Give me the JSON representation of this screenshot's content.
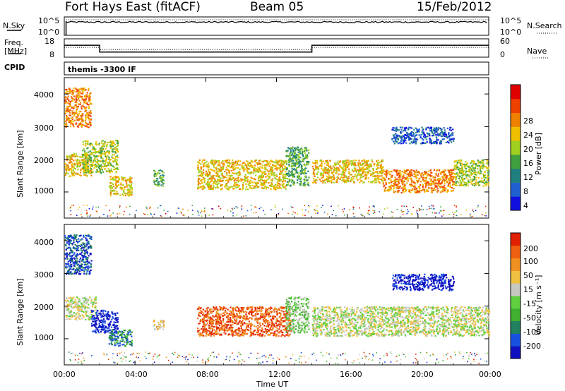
{
  "header": {
    "station": "Fort Hays East (fitACF)",
    "beam": "Beam 05",
    "date": "15/Feb/2012"
  },
  "noise_panel": {
    "left_label": "N.Sky",
    "right_label": "N.Search",
    "left_ticks": [
      "10^5",
      "10^0"
    ],
    "right_ticks": [
      "10^5",
      "10^0"
    ]
  },
  "freq_panel": {
    "left_label_1": "Freq.",
    "left_label_2": "[MHz]",
    "right_label": "Nave",
    "left_ticks": [
      "18",
      "8"
    ],
    "right_ticks": [
      "60",
      "0"
    ]
  },
  "cpid_panel": {
    "label": "CPID",
    "program": "themis -3300 IF"
  },
  "power_panel": {
    "ylabel": "Slant Range [km]",
    "yticks": [
      "4000",
      "3000",
      "2000",
      "1000"
    ],
    "colorbar_label": "Power [dB]",
    "colorbar_ticks": [
      "28",
      "24",
      "20",
      "16",
      "12",
      "8",
      "4"
    ],
    "colors": [
      "#1010e0",
      "#2060d0",
      "#208080",
      "#40a040",
      "#a0d020",
      "#f0c000",
      "#f08000",
      "#f04000",
      "#e00000"
    ]
  },
  "velocity_panel": {
    "ylabel": "Slant Range [km]",
    "yticks": [
      "4000",
      "3000",
      "2000",
      "1000"
    ],
    "colorbar_label": "Velocity [m s⁻¹]",
    "colorbar_ticks": [
      "200",
      "100",
      "50",
      "15",
      "-15",
      "-50",
      "-100",
      "-200"
    ],
    "colors": [
      "#1010c0",
      "#1850e0",
      "#208060",
      "#40b030",
      "#60d040",
      "#c8c8c0",
      "#f0c040",
      "#f09020",
      "#f06010",
      "#e02000"
    ]
  },
  "xaxis": {
    "label": "Time UT",
    "ticks": [
      "00:00",
      "04:00",
      "08:00",
      "12:00",
      "16:00",
      "20:00",
      "00:00"
    ]
  },
  "chart_data": [
    {
      "type": "line",
      "name_ref": "noise",
      "x_range_hours": [
        0,
        24
      ],
      "series": [
        {
          "name": "N.Sky",
          "x": [
            0.1,
            2,
            4,
            6,
            8,
            10,
            12,
            14,
            16,
            18,
            20,
            22,
            24
          ],
          "y_frac": [
            0.75,
            0.72,
            0.7,
            0.72,
            0.7,
            0.72,
            0.7,
            0.72,
            0.7,
            0.7,
            0.72,
            0.72,
            0.75
          ]
        },
        {
          "name": "N.Search",
          "x": [
            0.1,
            24
          ],
          "y_frac": [
            0.85,
            0.85
          ]
        }
      ]
    },
    {
      "type": "line",
      "name_ref": "frequency",
      "ylim": [
        8,
        18
      ],
      "series": [
        {
          "name": "Freq.",
          "x": [
            0,
            2,
            2,
            14,
            14,
            24
          ],
          "y": [
            14.5,
            14.5,
            10.8,
            10.8,
            14.5,
            14.5
          ]
        },
        {
          "name": "Nave",
          "x": [
            0,
            2,
            2,
            14,
            14,
            24
          ],
          "y2": [
            32,
            32,
            25,
            25,
            32,
            32
          ]
        }
      ],
      "y2lim": [
        0,
        60
      ]
    },
    {
      "type": "heatmap",
      "name_ref": "power",
      "x_range_hours": [
        0,
        24
      ],
      "ylim": [
        200,
        4500
      ],
      "colorbar": "Power [dB]",
      "clim": [
        0,
        32
      ],
      "regions": [
        {
          "t0": 0.0,
          "t1": 1.5,
          "r0": 3000,
          "r1": 4200,
          "level": 6
        },
        {
          "t0": 0.0,
          "t1": 1.5,
          "r0": 1500,
          "r1": 2200,
          "level": 5
        },
        {
          "t0": 1.0,
          "t1": 3.0,
          "r0": 1600,
          "r1": 2600,
          "level": 4
        },
        {
          "t0": 2.5,
          "t1": 3.8,
          "r0": 900,
          "r1": 1500,
          "level": 5
        },
        {
          "t0": 5.0,
          "t1": 5.6,
          "r0": 1200,
          "r1": 1700,
          "level": 3
        },
        {
          "t0": 7.5,
          "t1": 12.5,
          "r0": 1100,
          "r1": 2000,
          "level": 5
        },
        {
          "t0": 12.5,
          "t1": 13.8,
          "r0": 1200,
          "r1": 2400,
          "level": 3
        },
        {
          "t0": 14.0,
          "t1": 18.0,
          "r0": 1300,
          "r1": 2000,
          "level": 5
        },
        {
          "t0": 18.0,
          "t1": 22.0,
          "r0": 1000,
          "r1": 1700,
          "level": 6
        },
        {
          "t0": 22.0,
          "t1": 24.0,
          "r0": 1200,
          "r1": 2000,
          "level": 4
        },
        {
          "t0": 18.5,
          "t1": 22.0,
          "r0": 2500,
          "r1": 3000,
          "level": 1
        }
      ]
    },
    {
      "type": "heatmap",
      "name_ref": "velocity",
      "x_range_hours": [
        0,
        24
      ],
      "ylim": [
        200,
        4500
      ],
      "colorbar": "Velocity [m s⁻¹]",
      "clim": [
        -250,
        250
      ],
      "regions": [
        {
          "t0": 0.0,
          "t1": 1.5,
          "r0": 3000,
          "r1": 4200,
          "level": 1
        },
        {
          "t0": 0.0,
          "t1": 1.8,
          "r0": 1600,
          "r1": 2300,
          "level": 5
        },
        {
          "t0": 1.5,
          "t1": 3.0,
          "r0": 1200,
          "r1": 1900,
          "level": 0
        },
        {
          "t0": 2.5,
          "t1": 3.8,
          "r0": 800,
          "r1": 1300,
          "level": 2
        },
        {
          "t0": 5.0,
          "t1": 5.6,
          "r0": 1300,
          "r1": 1600,
          "level": 6
        },
        {
          "t0": 7.5,
          "t1": 12.8,
          "r0": 1100,
          "r1": 2000,
          "level": 8
        },
        {
          "t0": 12.5,
          "t1": 13.8,
          "r0": 1200,
          "r1": 2300,
          "level": 4
        },
        {
          "t0": 14.0,
          "t1": 24.0,
          "r0": 1100,
          "r1": 2000,
          "level": 5
        },
        {
          "t0": 18.5,
          "t1": 22.0,
          "r0": 2500,
          "r1": 3000,
          "level": 0
        }
      ]
    }
  ]
}
